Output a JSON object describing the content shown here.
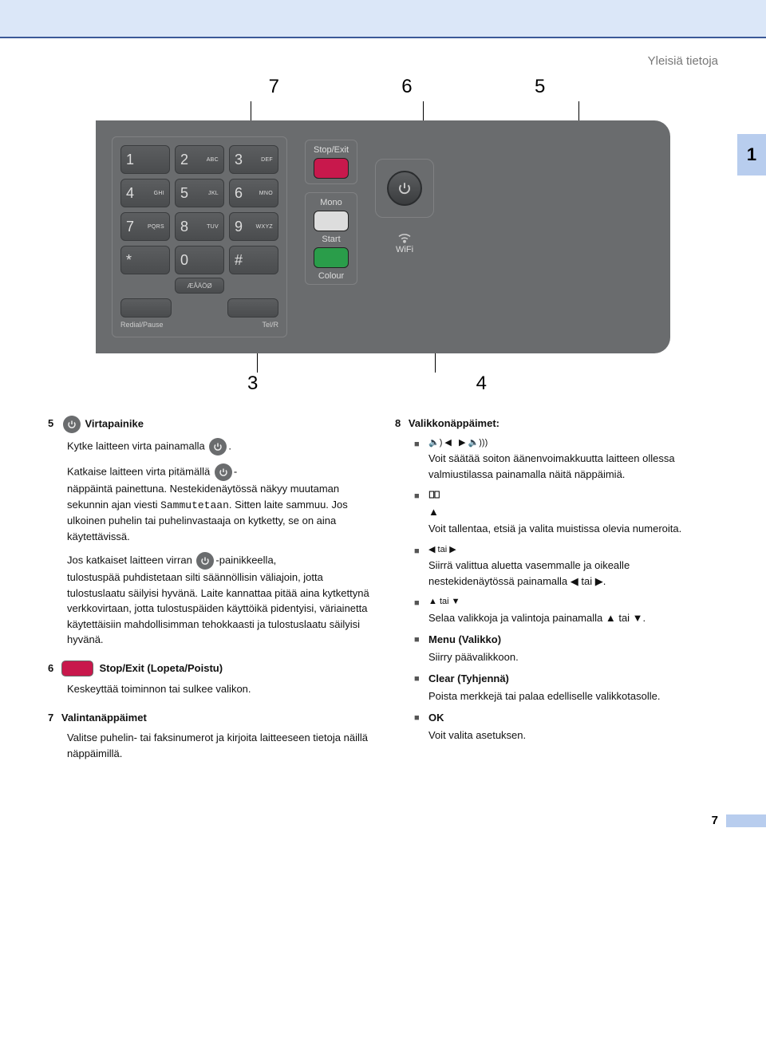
{
  "header": {
    "section_label": "Yleisiä tietoja"
  },
  "tab": {
    "number": "1"
  },
  "callouts": {
    "top": [
      "7",
      "6",
      "5"
    ],
    "bottom": [
      "3",
      "4"
    ]
  },
  "keypad": {
    "keys": [
      {
        "num": "1",
        "sub": ""
      },
      {
        "num": "2",
        "sub": "ABC"
      },
      {
        "num": "3",
        "sub": "DEF"
      },
      {
        "num": "4",
        "sub": "GHI"
      },
      {
        "num": "5",
        "sub": "JKL"
      },
      {
        "num": "6",
        "sub": "MNO"
      },
      {
        "num": "7",
        "sub": "PQRS"
      },
      {
        "num": "8",
        "sub": "TUV"
      },
      {
        "num": "9",
        "sub": "WXYZ"
      },
      {
        "num": "*",
        "sub": ""
      },
      {
        "num": "0",
        "sub": ""
      },
      {
        "num": "#",
        "sub": ""
      }
    ],
    "longkey": "ÆÅÄÖØ",
    "left_label": "Redial/Pause",
    "right_label": "Tel/R"
  },
  "actions": {
    "stop": "Stop/Exit",
    "mono": "Mono",
    "start": "Start",
    "colour": "Colour",
    "wifi": "WiFi"
  },
  "left_col": {
    "i5": {
      "num": "5",
      "title": " Virtapainike",
      "line1_pre": "Kytke laitteen virta painamalla ",
      "line1_post": ".",
      "line2_pre": "Katkaise laitteen virta pitämällä ",
      "line2_post": "-",
      "line3": "näppäintä painettuna. Nestekidenäytössä näkyy muutaman sekunnin ajan viesti ",
      "line3_mono": "Sammutetaan",
      "line3_end": ". Sitten laite sammuu. Jos ulkoinen puhelin tai puhelinvastaaja on kytketty, se on aina käytettävissä.",
      "line4_pre": "Jos katkaiset laitteen virran ",
      "line4_post": "-painikkeella,",
      "line5": "tulostuspää puhdistetaan silti säännöllisin väliajoin, jotta tulostuslaatu säilyisi hyvänä. Laite kannattaa pitää aina kytkettynä verkkovirtaan, jotta tulostuspäiden käyttöikä pidentyisi, väriainetta käytettäisiin mahdollisimman tehokkaasti ja tulostuslaatu säilyisi hyvänä."
    },
    "i6": {
      "num": "6",
      "title": " Stop/Exit (Lopeta/Poistu)",
      "body": "Keskeyttää toiminnon tai sulkee valikon."
    },
    "i7": {
      "num": "7",
      "title": "Valintanäppäimet",
      "body": "Valitse puhelin- tai faksinumerot ja kirjoita laitteeseen tietoja näillä näppäimillä."
    }
  },
  "right_col": {
    "i8": {
      "num": "8",
      "title": "Valikkonäppäimet:",
      "items": [
        {
          "heading_type": "volume",
          "body": "Voit säätää soiton äänenvoimakkuutta laitteen ollessa valmiustilassa painamalla näitä näppäimiä."
        },
        {
          "heading_type": "book",
          "body": "Voit tallentaa, etsiä ja valita muistissa olevia numeroita."
        },
        {
          "heading_text": "◀ tai ▶",
          "body": "Siirrä valittua aluetta vasemmalle ja oikealle nestekidenäytössä painamalla ◀ tai ▶."
        },
        {
          "heading_text": "▲ tai ▼",
          "body": "Selaa valikkoja ja valintoja painamalla ▲ tai ▼."
        },
        {
          "heading_bold": "Menu (Valikko)",
          "body": "Siirry päävalikkoon."
        },
        {
          "heading_bold": "Clear (Tyhjennä)",
          "body": "Poista merkkejä tai palaa edelliselle valikkotasolle."
        },
        {
          "heading_bold": "OK",
          "body": "Voit valita asetuksen."
        }
      ]
    }
  },
  "footer": {
    "page": "7"
  }
}
